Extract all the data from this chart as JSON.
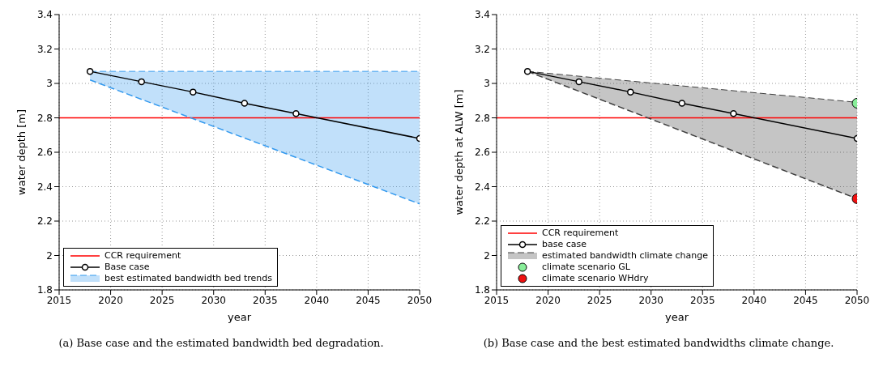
{
  "chart_data": [
    {
      "type": "line",
      "xlabel": "year",
      "ylabel": "water depth [m]",
      "xlim": [
        2015,
        2050
      ],
      "xticks": [
        2015,
        2020,
        2025,
        2030,
        2035,
        2040,
        2045,
        2050
      ],
      "ylim": [
        1.8,
        3.4
      ],
      "yticks": [
        1.8,
        2,
        2.2,
        2.4,
        2.6,
        2.8,
        3,
        3.2,
        3.4
      ],
      "grid": true,
      "legend": "bottom left",
      "annotations": [
        "(a) Base case and the estimated bandwidth bed degradation."
      ],
      "series": [
        {
          "name": "CCR requirement",
          "type": "line",
          "color": "#ff0000",
          "x": [
            2015,
            2050
          ],
          "values": [
            2.8,
            2.8
          ],
          "marker": "none",
          "line_style": "solid"
        },
        {
          "name": "Base case",
          "type": "line",
          "color": "#000000",
          "x": [
            2018,
            2023,
            2028,
            2033,
            2038,
            2050
          ],
          "values": [
            3.07,
            3.01,
            2.95,
            2.885,
            2.825,
            2.68
          ],
          "marker": "circle",
          "line_style": "solid"
        },
        {
          "name": "best estimated bandwidth bed trends",
          "type": "line",
          "color": "#3399ee",
          "x": [
            2018,
            2050
          ],
          "values": [
            3.07,
            3.07
          ],
          "lower": [
            3.02,
            2.3
          ],
          "upper": [
            3.07,
            3.07
          ],
          "marker": "none",
          "line_style": "dashed"
        },
        {
          "type": "line",
          "color": "#3399ee",
          "x": [
            2018,
            2050
          ],
          "values": [
            3.02,
            2.3
          ],
          "marker": "none",
          "line_style": "dashed"
        }
      ]
    },
    {
      "type": "line",
      "xlabel": "year",
      "ylabel": "water depth at ALW [m]",
      "xlim": [
        2015,
        2050
      ],
      "xticks": [
        2015,
        2020,
        2025,
        2030,
        2035,
        2040,
        2045,
        2050
      ],
      "ylim": [
        1.8,
        3.4
      ],
      "yticks": [
        1.8,
        2,
        2.2,
        2.4,
        2.6,
        2.8,
        3,
        3.2,
        3.4
      ],
      "grid": true,
      "legend": "bottom left",
      "annotations": [
        "(b) Base case and the best estimated bandwidths climate change."
      ],
      "series": [
        {
          "name": "CCR requirement",
          "type": "line",
          "color": "#ff0000",
          "x": [
            2015,
            2050
          ],
          "values": [
            2.8,
            2.8
          ],
          "marker": "none",
          "line_style": "solid"
        },
        {
          "name": "base case",
          "type": "line",
          "color": "#000000",
          "x": [
            2018,
            2023,
            2028,
            2033,
            2038,
            2050
          ],
          "values": [
            3.07,
            3.01,
            2.95,
            2.885,
            2.825,
            2.68
          ],
          "marker": "circle",
          "line_style": "solid"
        },
        {
          "name": "estimated bandwidth climate change",
          "type": "line",
          "color": "#404040",
          "x": [
            2018,
            2050
          ],
          "values": [
            3.07,
            2.89
          ],
          "lower": [
            3.07,
            2.33
          ],
          "upper": [
            3.07,
            2.89
          ],
          "marker": "none",
          "line_style": "dashed"
        },
        {
          "type": "line",
          "color": "#404040",
          "x": [
            2018,
            2050
          ],
          "values": [
            3.07,
            2.33
          ],
          "marker": "none",
          "line_style": "dashed"
        },
        {
          "name": "climate scenario GL",
          "type": "scatter",
          "color": "#88ee99",
          "x": [
            2050
          ],
          "values": [
            2.885
          ],
          "marker": "circle"
        },
        {
          "name": "climate scenario WHdry",
          "type": "scatter",
          "color": "#ee1111",
          "x": [
            2050
          ],
          "values": [
            2.33
          ],
          "marker": "circle"
        }
      ]
    }
  ]
}
